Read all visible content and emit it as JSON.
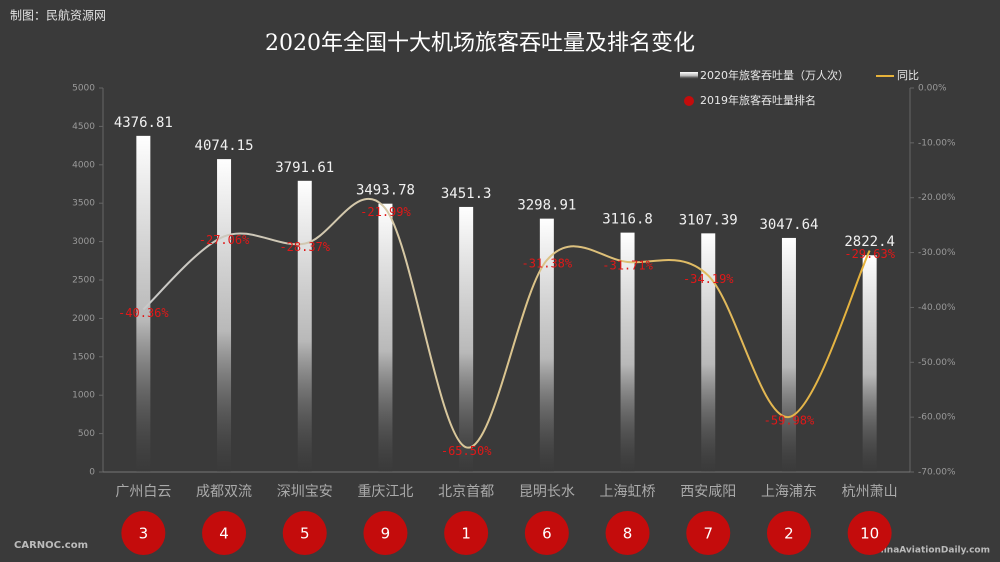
{
  "chart_data": {
    "type": "bar",
    "title": "2020年全国十大机场旅客吞吐量及排名变化",
    "source": "制图：民航资源网",
    "watermarks": [
      "CARNOC.com",
      "ChinaAviationDaily.com"
    ],
    "categories": [
      "广州白云",
      "成都双流",
      "深圳宝安",
      "重庆江北",
      "北京首都",
      "昆明长水",
      "上海虹桥",
      "西安咸阳",
      "上海浦东",
      "杭州萧山"
    ],
    "series": [
      {
        "name": "2020年旅客吞吐量（万人次）",
        "color": "#ffffff",
        "values": [
          4376.81,
          4074.15,
          3791.61,
          3493.78,
          3451.3,
          3298.91,
          3116.8,
          3107.39,
          3047.64,
          2822.4
        ]
      },
      {
        "name": "同比",
        "type": "line",
        "axis": "y2",
        "color": "#e6b23a",
        "values": [
          -40.36,
          -27.06,
          -28.37,
          -21.99,
          -65.5,
          -31.38,
          -31.71,
          -34.19,
          -59.98,
          -29.63
        ],
        "value_labels": [
          "-40.36%",
          "-27.06%",
          "-28.37%",
          "-21.99%",
          "-65.50%",
          "-31.38%",
          "-31.71%",
          "-34.19%",
          "-59.98%",
          "-29.63%"
        ]
      }
    ],
    "ranking": {
      "name": "2019年旅客吞吐量排名",
      "color": "#c40c0c",
      "values": [
        3,
        4,
        5,
        9,
        1,
        6,
        8,
        7,
        2,
        10
      ]
    },
    "ylim": [
      0,
      5000
    ],
    "yticks": [
      0,
      500,
      1000,
      1500,
      2000,
      2500,
      3000,
      3500,
      4000,
      4500,
      5000
    ],
    "y2lim": [
      -70,
      0
    ],
    "y2ticks": [
      {
        "value": 0,
        "label": "0.00%"
      },
      {
        "value": -10,
        "label": "-10.00%"
      },
      {
        "value": -20,
        "label": "-20.00%"
      },
      {
        "value": -30,
        "label": "-30.00%"
      },
      {
        "value": -40,
        "label": "-40.00%"
      },
      {
        "value": -50,
        "label": "-50.00%"
      },
      {
        "value": -60,
        "label": "-60.00%"
      },
      {
        "value": -70,
        "label": "-70.00%"
      }
    ]
  }
}
